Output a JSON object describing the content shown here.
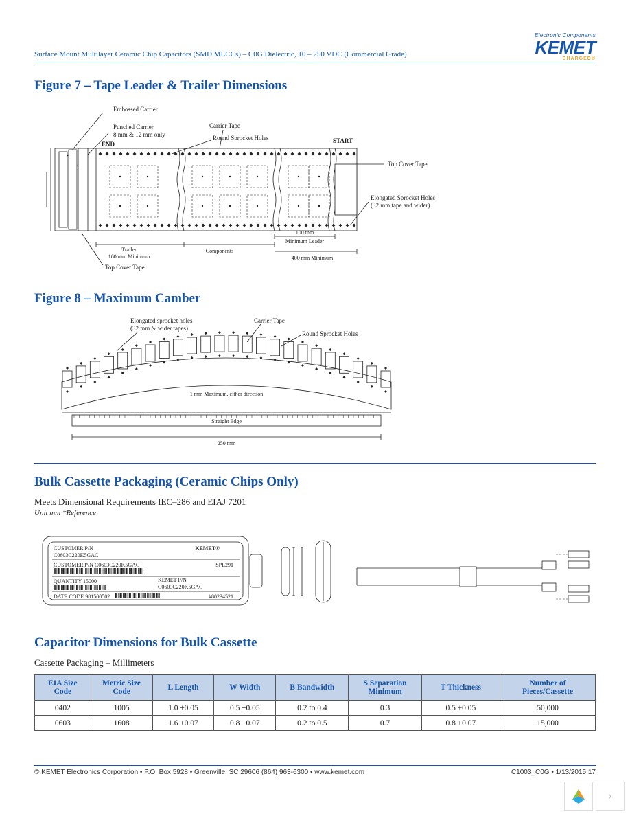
{
  "header": {
    "doc_title": "Surface Mount Multilayer Ceramic Chip Capacitors (SMD MLCCs) – C0G Dielectric, 10 – 250 VDC (Commercial Grade)",
    "logo_top": "Electronic Components",
    "logo_main": "KEMET",
    "logo_sub": "CHARGED®"
  },
  "figure7": {
    "title": "Figure 7 – Tape Leader & Trailer Dimensions",
    "labels": {
      "embossed": "Embossed Carrier",
      "punched1": "Punched Carrier",
      "punched2": "8 mm & 12 mm only",
      "end": "END",
      "carrier_tape": "Carrier Tape",
      "round_holes": "Round Sprocket Holes",
      "start": "START",
      "top_cover": "Top Cover Tape",
      "top_cover2": "Top Cover Tape",
      "elongated1": "Elongated Sprocket Holes",
      "elongated2": "(32 mm tape and wider)",
      "trailer1": "Trailer",
      "trailer2": "160 mm Minimum",
      "components": "Components",
      "leader_100": "100 mm",
      "leader_min": "Minimum Leader",
      "leader_400": "400 mm Minimum"
    },
    "colors": {
      "line": "#222222"
    }
  },
  "figure8": {
    "title": "Figure 8 – Maximum Camber",
    "labels": {
      "elongated1": "Elongated sprocket holes",
      "elongated2": "(32 mm & wider tapes)",
      "carrier": "Carrier Tape",
      "round": "Round Sprocket Holes",
      "camber": "1 mm Maximum, either direction",
      "straight": "Straight Edge",
      "len": "250 mm"
    }
  },
  "bulk": {
    "title": "Bulk Cassette Packaging (Ceramic Chips Only)",
    "subtitle": "Meets Dimensional Requirements IEC–286 and EIAJ 7201",
    "unit": "Unit mm *Reference",
    "label_customer": "CUSTOMER P/N",
    "label_pn": "C0603C220K5GAC",
    "label_kemet": "KEMET®",
    "label_customer2": "CUSTOMER P/N C0603C220K5GAC",
    "label_spl": "SPL291",
    "label_qty": "QUANTITY 15000",
    "label_kemet_pn": "KEMET P/N",
    "label_kemet_pn2": "C0603C220K5GAC",
    "label_date": "DATE CODE 981500502",
    "label_code": "#80234521"
  },
  "dims": {
    "title": "Capacitor Dimensions for Bulk Cassette",
    "subtitle": "Cassette Packaging – Millimeters",
    "columns": [
      "EIA Size Code",
      "Metric Size Code",
      "L Length",
      "W Width",
      "B Bandwidth",
      "S Separation Minimum",
      "T Thickness",
      "Number of Pieces/Cassette"
    ],
    "col_widths": [
      "10%",
      "11%",
      "11%",
      "11%",
      "13%",
      "13%",
      "14%",
      "17%"
    ],
    "rows": [
      [
        "0402",
        "1005",
        "1.0 ±0.05",
        "0.5 ±0.05",
        "0.2 to 0.4",
        "0.3",
        "0.5 ±0.05",
        "50,000"
      ],
      [
        "0603",
        "1608",
        "1.6 ±0.07",
        "0.8 ±0.07",
        "0.2 to 0.5",
        "0.7",
        "0.8 ±0.07",
        "15,000"
      ]
    ],
    "header_bg": "#c3d4ea",
    "header_color": "#1554a8",
    "border_color": "#555555"
  },
  "footer": {
    "left": "© KEMET Electronics Corporation • P.O. Box 5928 • Greenville, SC 29606 (864) 963-6300 • www.kemet.com",
    "right": "C1003_C0G • 1/13/2015 17"
  },
  "colors": {
    "brand_blue": "#1554a8",
    "brand_orange": "#f5a623"
  }
}
